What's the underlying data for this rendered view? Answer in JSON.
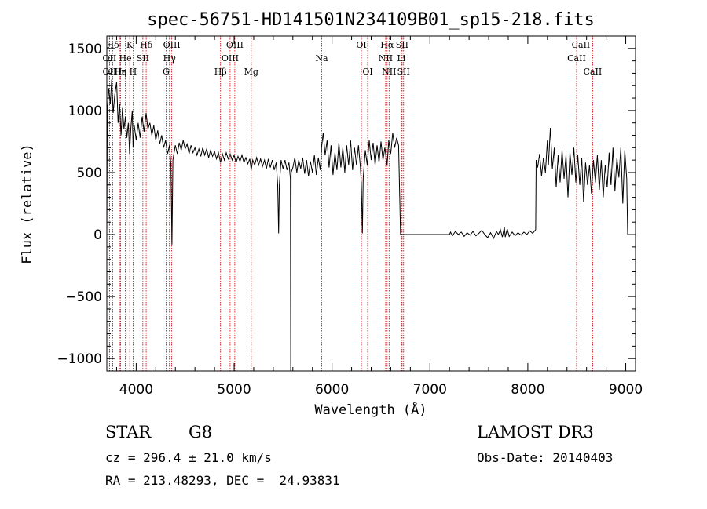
{
  "chart_data": {
    "type": "line",
    "title": "spec-56751-HD141501N234109B01_sp15-218.fits",
    "xlabel": "Wavelength (Å)",
    "ylabel": "Flux (relative)",
    "xlim": [
      3700,
      9100
    ],
    "ylim": [
      -1100,
      1600
    ],
    "x_ticks": [
      4000,
      5000,
      6000,
      7000,
      8000,
      9000
    ],
    "y_ticks": [
      -1000,
      -500,
      0,
      500,
      1000,
      1500
    ],
    "grid": false,
    "series": [
      {
        "values": [
          [
            3700,
            0
          ],
          [
            3705,
            1000
          ],
          [
            3720,
            1180
          ],
          [
            3735,
            1050
          ],
          [
            3750,
            1250
          ],
          [
            3765,
            980
          ],
          [
            3780,
            1120
          ],
          [
            3800,
            1230
          ],
          [
            3815,
            900
          ],
          [
            3830,
            1050
          ],
          [
            3845,
            800
          ],
          [
            3860,
            1020
          ],
          [
            3875,
            850
          ],
          [
            3890,
            950
          ],
          [
            3905,
            780
          ],
          [
            3920,
            900
          ],
          [
            3933,
            650
          ],
          [
            3945,
            850
          ],
          [
            3960,
            1000
          ],
          [
            3968,
            700
          ],
          [
            3980,
            880
          ],
          [
            4000,
            760
          ],
          [
            4020,
            900
          ],
          [
            4040,
            780
          ],
          [
            4060,
            950
          ],
          [
            4080,
            830
          ],
          [
            4101,
            980
          ],
          [
            4120,
            850
          ],
          [
            4140,
            900
          ],
          [
            4160,
            800
          ],
          [
            4180,
            880
          ],
          [
            4200,
            760
          ],
          [
            4220,
            840
          ],
          [
            4240,
            730
          ],
          [
            4260,
            800
          ],
          [
            4280,
            700
          ],
          [
            4300,
            760
          ],
          [
            4320,
            650
          ],
          [
            4340,
            720
          ],
          [
            4355,
            560
          ],
          [
            4365,
            -80
          ],
          [
            4375,
            600
          ],
          [
            4400,
            720
          ],
          [
            4420,
            650
          ],
          [
            4440,
            740
          ],
          [
            4460,
            680
          ],
          [
            4480,
            760
          ],
          [
            4500,
            690
          ],
          [
            4520,
            730
          ],
          [
            4540,
            650
          ],
          [
            4560,
            720
          ],
          [
            4580,
            660
          ],
          [
            4600,
            700
          ],
          [
            4620,
            640
          ],
          [
            4640,
            690
          ],
          [
            4660,
            630
          ],
          [
            4680,
            700
          ],
          [
            4700,
            640
          ],
          [
            4720,
            690
          ],
          [
            4740,
            620
          ],
          [
            4760,
            680
          ],
          [
            4780,
            630
          ],
          [
            4800,
            670
          ],
          [
            4820,
            610
          ],
          [
            4840,
            660
          ],
          [
            4861,
            580
          ],
          [
            4880,
            650
          ],
          [
            4900,
            600
          ],
          [
            4920,
            660
          ],
          [
            4940,
            610
          ],
          [
            4960,
            650
          ],
          [
            4980,
            600
          ],
          [
            5000,
            640
          ],
          [
            5020,
            580
          ],
          [
            5040,
            630
          ],
          [
            5060,
            590
          ],
          [
            5080,
            640
          ],
          [
            5100,
            580
          ],
          [
            5120,
            620
          ],
          [
            5140,
            570
          ],
          [
            5160,
            610
          ],
          [
            5175,
            520
          ],
          [
            5190,
            600
          ],
          [
            5210,
            560
          ],
          [
            5230,
            620
          ],
          [
            5250,
            560
          ],
          [
            5270,
            610
          ],
          [
            5290,
            550
          ],
          [
            5310,
            600
          ],
          [
            5330,
            530
          ],
          [
            5350,
            610
          ],
          [
            5370,
            540
          ],
          [
            5390,
            600
          ],
          [
            5410,
            520
          ],
          [
            5430,
            580
          ],
          [
            5445,
            400
          ],
          [
            5455,
            10
          ],
          [
            5462,
            400
          ],
          [
            5480,
            600
          ],
          [
            5500,
            530
          ],
          [
            5520,
            600
          ],
          [
            5540,
            520
          ],
          [
            5560,
            580
          ],
          [
            5575,
            450
          ],
          [
            5578,
            -1100
          ],
          [
            5582,
            500
          ],
          [
            5600,
            540
          ],
          [
            5620,
            620
          ],
          [
            5640,
            500
          ],
          [
            5660,
            600
          ],
          [
            5680,
            530
          ],
          [
            5700,
            620
          ],
          [
            5720,
            490
          ],
          [
            5740,
            600
          ],
          [
            5760,
            470
          ],
          [
            5780,
            590
          ],
          [
            5800,
            500
          ],
          [
            5820,
            640
          ],
          [
            5840,
            480
          ],
          [
            5860,
            620
          ],
          [
            5880,
            520
          ],
          [
            5893,
            700
          ],
          [
            5910,
            820
          ],
          [
            5930,
            640
          ],
          [
            5950,
            760
          ],
          [
            5970,
            540
          ],
          [
            5990,
            720
          ],
          [
            6010,
            480
          ],
          [
            6030,
            660
          ],
          [
            6050,
            520
          ],
          [
            6070,
            740
          ],
          [
            6090,
            540
          ],
          [
            6110,
            700
          ],
          [
            6130,
            500
          ],
          [
            6150,
            720
          ],
          [
            6170,
            560
          ],
          [
            6190,
            760
          ],
          [
            6210,
            520
          ],
          [
            6230,
            700
          ],
          [
            6250,
            560
          ],
          [
            6270,
            720
          ],
          [
            6290,
            540
          ],
          [
            6300,
            400
          ],
          [
            6310,
            10
          ],
          [
            6318,
            450
          ],
          [
            6340,
            680
          ],
          [
            6360,
            560
          ],
          [
            6380,
            760
          ],
          [
            6400,
            600
          ],
          [
            6420,
            740
          ],
          [
            6440,
            560
          ],
          [
            6460,
            720
          ],
          [
            6480,
            580
          ],
          [
            6500,
            750
          ],
          [
            6520,
            600
          ],
          [
            6540,
            700
          ],
          [
            6563,
            560
          ],
          [
            6580,
            760
          ],
          [
            6600,
            650
          ],
          [
            6620,
            820
          ],
          [
            6640,
            700
          ],
          [
            6660,
            780
          ],
          [
            6680,
            720
          ],
          [
            6700,
            0
          ],
          [
            7000,
            0
          ],
          [
            7200,
            0
          ],
          [
            7210,
            20
          ],
          [
            7230,
            -10
          ],
          [
            7260,
            25
          ],
          [
            7290,
            0
          ],
          [
            7320,
            20
          ],
          [
            7350,
            -15
          ],
          [
            7380,
            15
          ],
          [
            7410,
            -5
          ],
          [
            7440,
            25
          ],
          [
            7470,
            -10
          ],
          [
            7500,
            10
          ],
          [
            7530,
            35
          ],
          [
            7560,
            0
          ],
          [
            7590,
            -25
          ],
          [
            7620,
            15
          ],
          [
            7650,
            -30
          ],
          [
            7680,
            25
          ],
          [
            7700,
            0
          ],
          [
            7720,
            40
          ],
          [
            7740,
            -20
          ],
          [
            7760,
            60
          ],
          [
            7770,
            -20
          ],
          [
            7790,
            45
          ],
          [
            7810,
            -15
          ],
          [
            7840,
            20
          ],
          [
            7870,
            -10
          ],
          [
            7900,
            15
          ],
          [
            7930,
            -5
          ],
          [
            7960,
            20
          ],
          [
            7990,
            0
          ],
          [
            8020,
            30
          ],
          [
            8050,
            10
          ],
          [
            8080,
            40
          ],
          [
            8085,
            600
          ],
          [
            8100,
            540
          ],
          [
            8120,
            650
          ],
          [
            8140,
            470
          ],
          [
            8160,
            620
          ],
          [
            8180,
            500
          ],
          [
            8200,
            760
          ],
          [
            8210,
            560
          ],
          [
            8230,
            860
          ],
          [
            8250,
            530
          ],
          [
            8270,
            700
          ],
          [
            8290,
            380
          ],
          [
            8310,
            640
          ],
          [
            8330,
            420
          ],
          [
            8350,
            680
          ],
          [
            8370,
            450
          ],
          [
            8390,
            640
          ],
          [
            8410,
            300
          ],
          [
            8430,
            660
          ],
          [
            8450,
            480
          ],
          [
            8470,
            700
          ],
          [
            8490,
            420
          ],
          [
            8510,
            640
          ],
          [
            8530,
            400
          ],
          [
            8550,
            620
          ],
          [
            8570,
            260
          ],
          [
            8590,
            580
          ],
          [
            8610,
            400
          ],
          [
            8630,
            560
          ],
          [
            8650,
            330
          ],
          [
            8670,
            600
          ],
          [
            8690,
            420
          ],
          [
            8710,
            640
          ],
          [
            8730,
            360
          ],
          [
            8750,
            600
          ],
          [
            8770,
            300
          ],
          [
            8790,
            560
          ],
          [
            8810,
            380
          ],
          [
            8830,
            660
          ],
          [
            8850,
            400
          ],
          [
            8870,
            700
          ],
          [
            8890,
            350
          ],
          [
            8910,
            620
          ],
          [
            8930,
            460
          ],
          [
            8950,
            700
          ],
          [
            8970,
            250
          ],
          [
            8990,
            680
          ],
          [
            9010,
            450
          ],
          [
            9020,
            0
          ]
        ]
      }
    ],
    "line_markers": [
      {
        "label": "Hδ",
        "x": 3760,
        "row": 1
      },
      {
        "label": "OII",
        "x": 3727,
        "row": 3
      },
      {
        "label": "Hε",
        "x": 3840,
        "row": 3
      },
      {
        "label": "OII",
        "x": 3727,
        "row": 2
      },
      {
        "label": "Hη",
        "x": 3835,
        "row": 3
      },
      {
        "label": "K",
        "x": 3934,
        "row": 1
      },
      {
        "label": "He",
        "x": 3889,
        "row": 2
      },
      {
        "label": "H",
        "x": 3968,
        "row": 3
      },
      {
        "label": "SII",
        "x": 4068,
        "row": 2
      },
      {
        "label": "Hδ",
        "x": 4102,
        "row": 1
      },
      {
        "label": "OIII",
        "x": 4363,
        "row": 1
      },
      {
        "label": "Hγ",
        "x": 4340,
        "row": 2
      },
      {
        "label": "G",
        "x": 4305,
        "row": 3
      },
      {
        "label": "Hβ",
        "x": 4861,
        "row": 3
      },
      {
        "label": "OIII",
        "x": 4959,
        "row": 2
      },
      {
        "label": "OIII",
        "x": 5007,
        "row": 1
      },
      {
        "label": "Mg",
        "x": 5175,
        "row": 3
      },
      {
        "label": "Na",
        "x": 5894,
        "row": 2
      },
      {
        "label": "OI",
        "x": 6300,
        "row": 1
      },
      {
        "label": "OI",
        "x": 6364,
        "row": 3
      },
      {
        "label": "Hα",
        "x": 6563,
        "row": 1
      },
      {
        "label": "NII",
        "x": 6548,
        "row": 2
      },
      {
        "label": "NII",
        "x": 6583,
        "row": 3
      },
      {
        "label": "SII",
        "x": 6716,
        "row": 1
      },
      {
        "label": "Li",
        "x": 6708,
        "row": 2
      },
      {
        "label": "SII",
        "x": 6731,
        "row": 3
      },
      {
        "label": "CaII",
        "x": 8542,
        "row": 1
      },
      {
        "label": "CaII",
        "x": 8498,
        "row": 2
      },
      {
        "label": "CaII",
        "x": 8662,
        "row": 3
      }
    ],
    "marker_color": "#cc0000"
  },
  "info": {
    "class": "STAR",
    "subclass": "G8",
    "survey": "LAMOST DR3",
    "cz": "cz = 296.4 ± 21.0 km/s",
    "obs_date": "Obs-Date: 20140403",
    "radec": "RA = 213.48293, DEC =  24.93831"
  }
}
